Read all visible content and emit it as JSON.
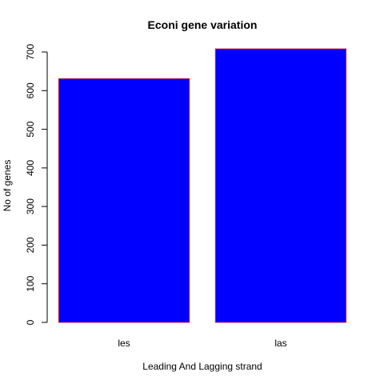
{
  "chart_data": {
    "type": "bar",
    "title": "Econi gene variation",
    "xlabel": "Leading And Lagging strand",
    "ylabel": "No of genes",
    "categories": [
      "les",
      "las"
    ],
    "values": [
      631,
      708
    ],
    "ylim": [
      0,
      700
    ],
    "yticks": [
      0,
      100,
      200,
      300,
      400,
      500,
      600,
      700
    ],
    "grid": false,
    "legend": "none",
    "colors": {
      "bar_fill": "#0000ff",
      "bar_border": "#cc2244",
      "axis": "#000000",
      "text": "#000000"
    }
  }
}
